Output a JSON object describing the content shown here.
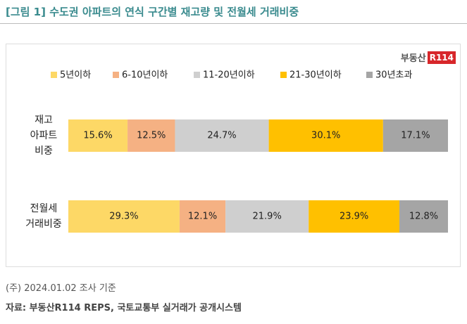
{
  "chart_data": {
    "type": "stacked_bar_horizontal",
    "title": "[그림 1] 수도권 아파트의 연식 구간별 재고량 및 전월세 거래비중",
    "logo": {
      "text": "부동산",
      "badge": "R114"
    },
    "categories": [
      "재고\n아파트\n비중",
      "전월세\n거래비중"
    ],
    "series": [
      {
        "name": "5년이하",
        "color": "#fdd866",
        "values": [
          15.6,
          29.3
        ],
        "value_labels": [
          "15.6%",
          "29.3%"
        ]
      },
      {
        "name": "6-10년이하",
        "color": "#f5b183",
        "values": [
          12.5,
          12.1
        ],
        "value_labels": [
          "12.5%",
          "12.1%"
        ]
      },
      {
        "name": "11-20년이하",
        "color": "#cfcfcf",
        "values": [
          24.7,
          21.9
        ],
        "value_labels": [
          "24.7%",
          "21.9%"
        ]
      },
      {
        "name": "21-30년이하",
        "color": "#ffc000",
        "values": [
          30.1,
          23.9
        ],
        "value_labels": [
          "30.1%",
          "23.9%"
        ]
      },
      {
        "name": "30년초과",
        "color": "#a5a5a5",
        "values": [
          17.1,
          12.8
        ],
        "value_labels": [
          "17.1%",
          "12.8%"
        ]
      }
    ],
    "xlim": [
      0,
      100
    ],
    "note": "(주) 2024.01.02 조사 기준",
    "source": "자료: 부동산R114 REPS, 국토교통부 실거래가 공개시스템"
  }
}
